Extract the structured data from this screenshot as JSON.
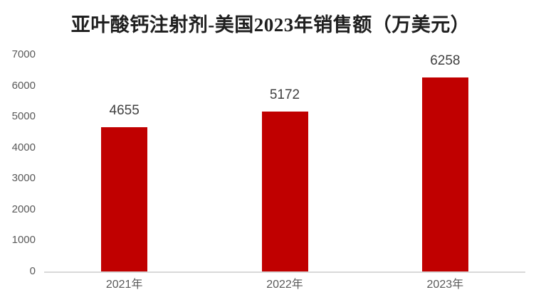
{
  "title": "亚叶酸钙注射剂-美国2023年销售额（万美元）",
  "colors": {
    "bar": "#C00000",
    "axis_line": "#D9D9D9",
    "tick_label": "#595959",
    "data_label": "#404040",
    "title": "#1F1F1F",
    "background": "#FFFFFF"
  },
  "chart_data": {
    "type": "bar",
    "title": "亚叶酸钙注射剂-美国2023年销售额（万美元）",
    "categories": [
      "2021年",
      "2022年",
      "2023年"
    ],
    "values": [
      4655,
      5172,
      6258
    ],
    "yticks": [
      0,
      1000,
      2000,
      3000,
      4000,
      5000,
      6000,
      7000
    ],
    "ylim": [
      0,
      7000
    ],
    "xlabel": "",
    "ylabel": "",
    "grid": false,
    "legend": "none",
    "data_labels_shown": true
  }
}
